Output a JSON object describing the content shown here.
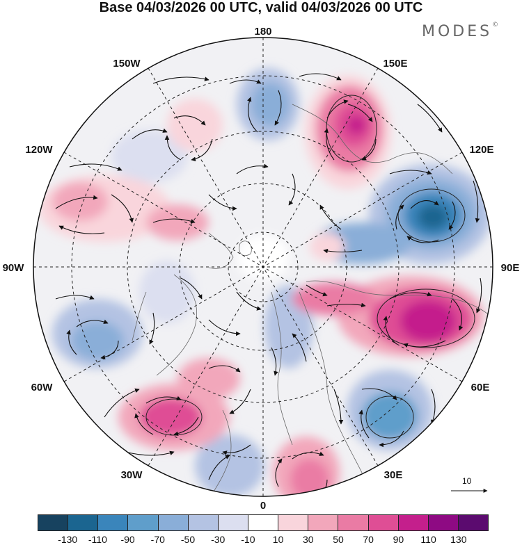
{
  "header": {
    "title": "Base 04/03/2026 00 UTC, valid 04/03/2026 00 UTC",
    "brand": "MODES",
    "brand_mark": "©"
  },
  "map": {
    "projection": "north-polar-stereographic",
    "longitude_labels": {
      "lon_180": "180",
      "lon_150w": "150W",
      "lon_150e": "150E",
      "lon_120w": "120W",
      "lon_120e": "120E",
      "lon_90w": "90W",
      "lon_90e": "90E",
      "lon_60w": "60W",
      "lon_60e": "60E",
      "lon_30w": "30W",
      "lon_30e": "30E",
      "lon_0": "0"
    },
    "reference_vector": "10"
  },
  "colorbar": {
    "labels": [
      "-130",
      "-110",
      "-90",
      "-70",
      "-50",
      "-30",
      "-10",
      "10",
      "30",
      "50",
      "70",
      "90",
      "110",
      "130"
    ],
    "colors": [
      "#17425f",
      "#1b6590",
      "#3a85bb",
      "#5f9ecb",
      "#8aaed8",
      "#b4c3e3",
      "#dcdff0",
      "#ffffff",
      "#f9d5dc",
      "#f2a7bb",
      "#ea7ba4",
      "#df4e95",
      "#c41f8c",
      "#8e0a83",
      "#5b0b6f"
    ]
  },
  "palette": {
    "ocean_bg": "#eef0f6",
    "neutral_bg": "#f1f1f4",
    "land_line": "#666666",
    "graticule": "#222222"
  }
}
